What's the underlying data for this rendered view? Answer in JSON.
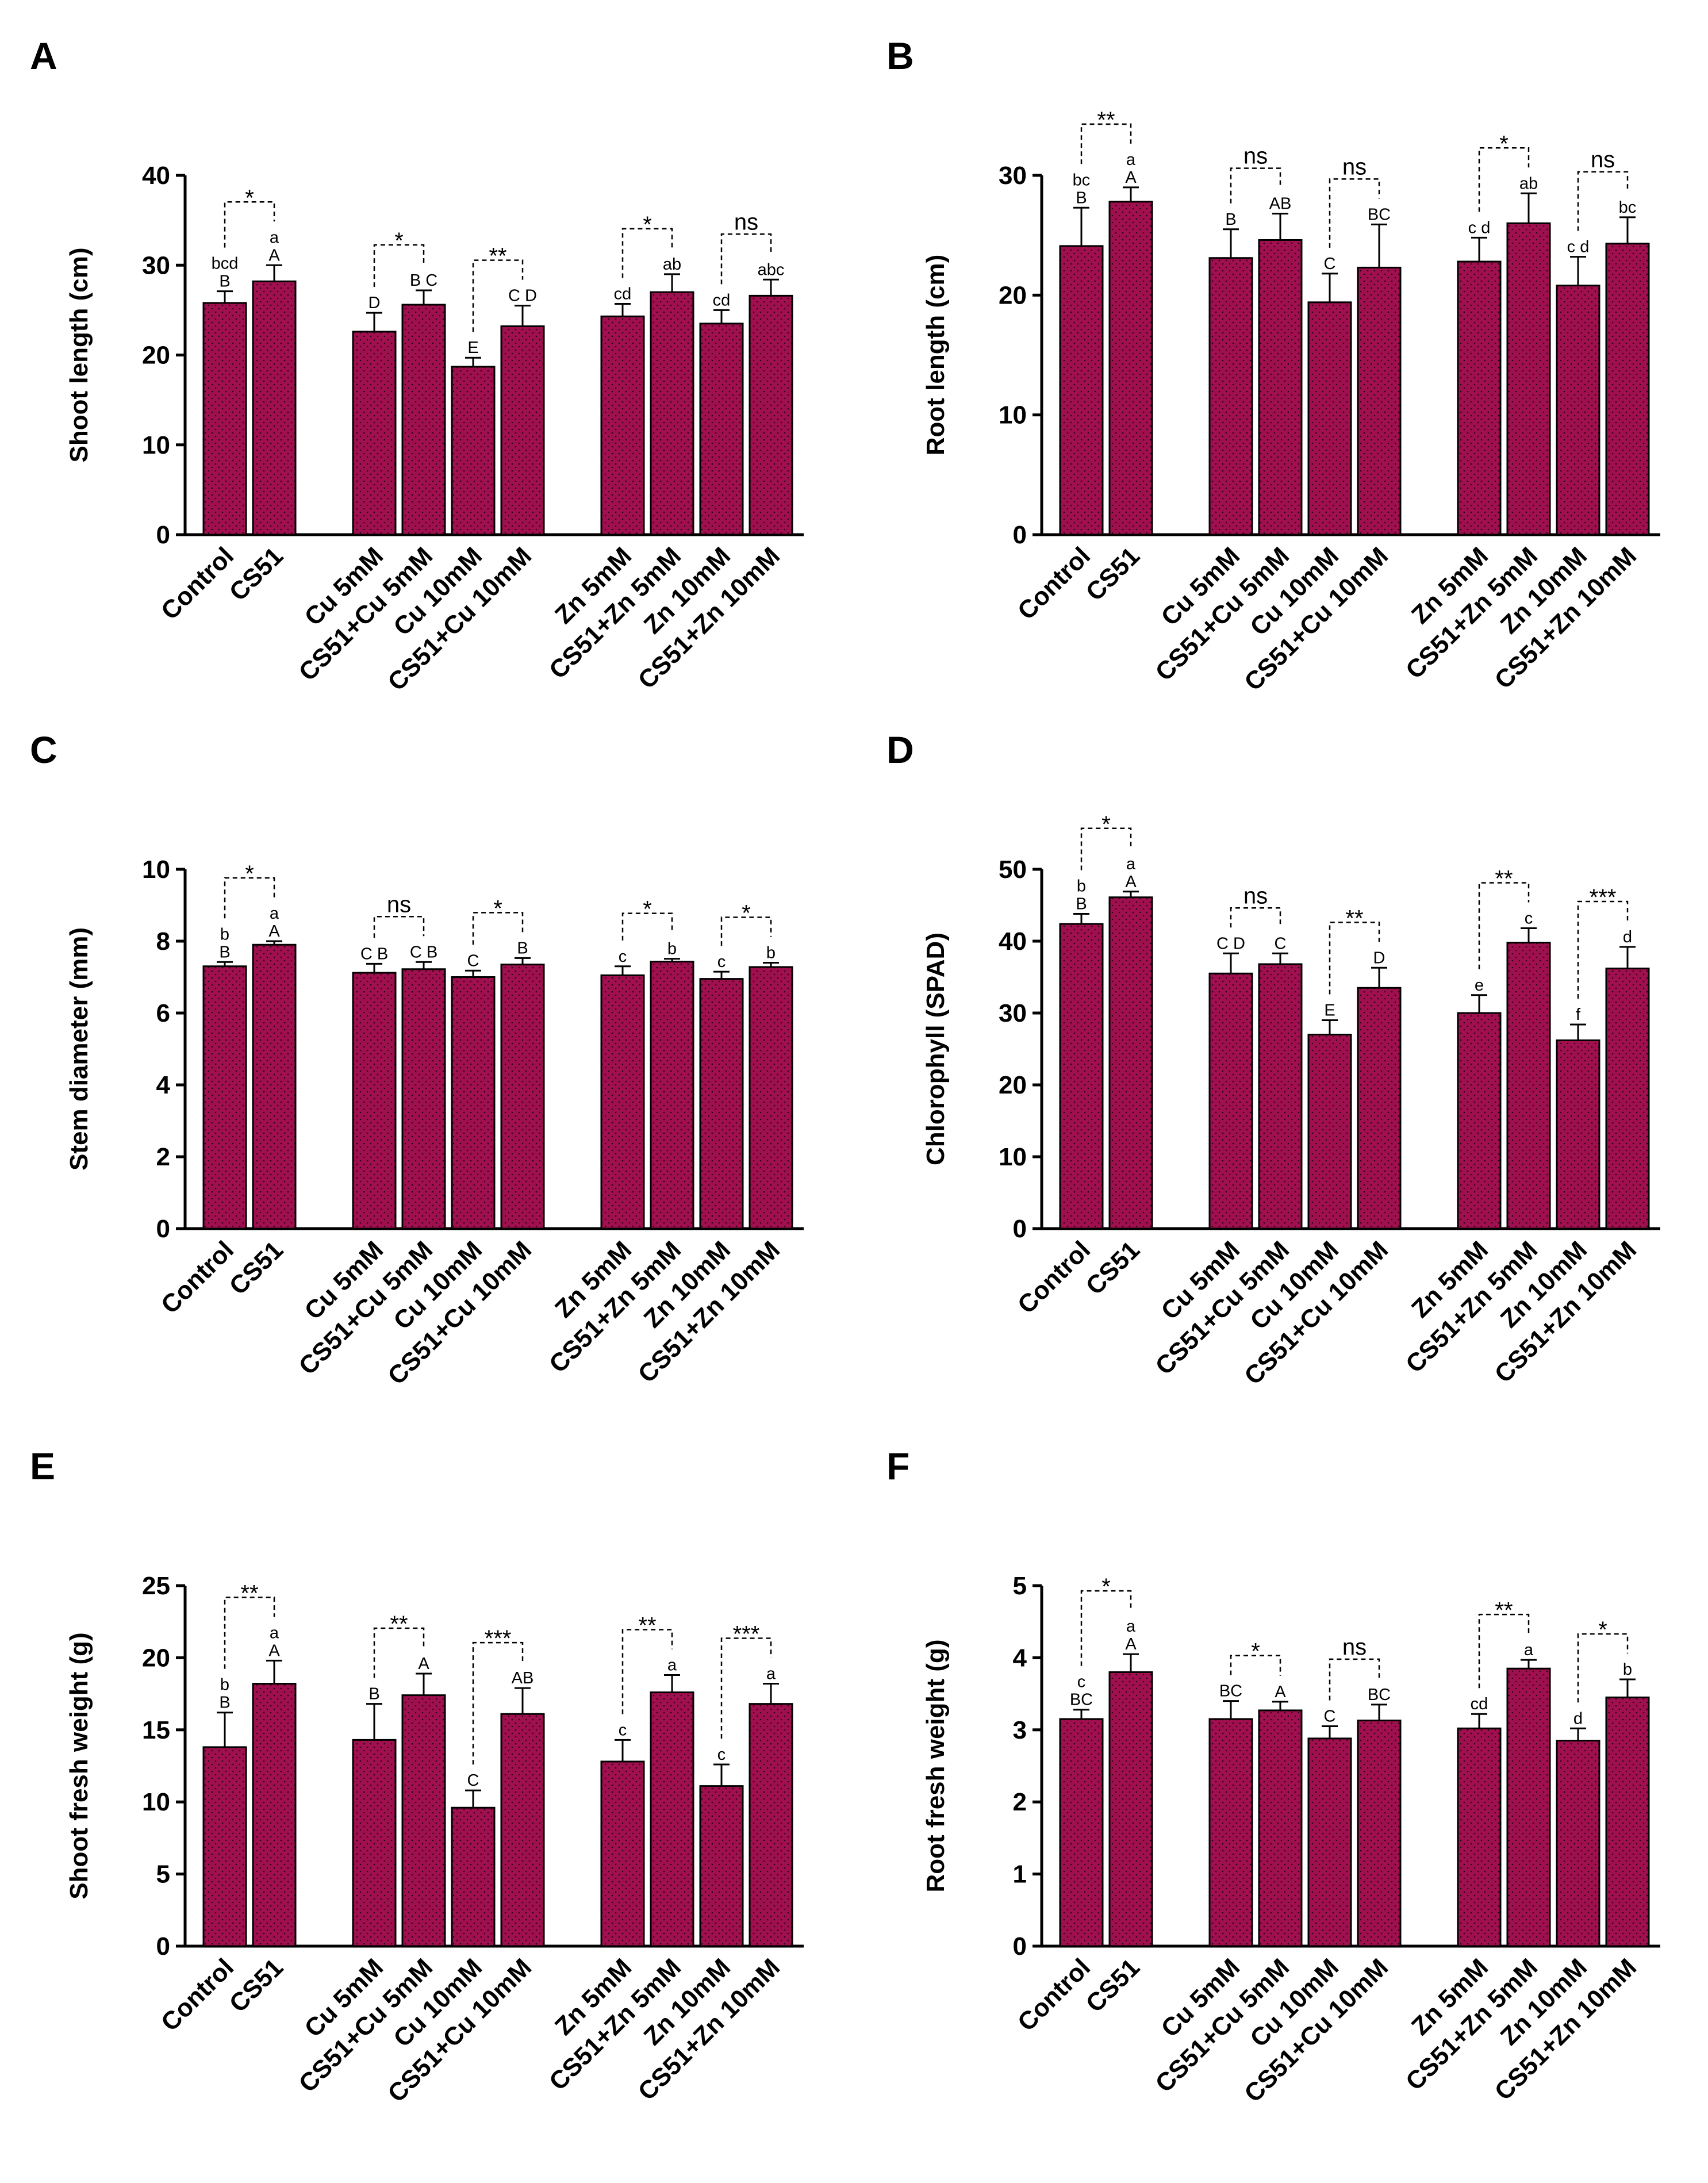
{
  "figure": {
    "bar_color": "#a0104f",
    "categories": [
      "Control",
      "CS51",
      "Cu 5mM",
      "CS51+Cu 5mM",
      "Cu 10mM",
      "CS51+Cu 10mM",
      "Zn 5mM",
      "CS51+Zn 5mM",
      "Zn 10mM",
      "CS51+Zn 10mM"
    ]
  },
  "chart_data": [
    {
      "panel": "A",
      "type": "bar",
      "ylabel": "Shoot length (cm)",
      "ylim": [
        0,
        40
      ],
      "yticks": [
        "0",
        "10",
        "20",
        "30",
        "40"
      ],
      "values": [
        25.8,
        28.2,
        22.6,
        25.6,
        18.7,
        23.2,
        24.3,
        27.0,
        23.5,
        26.6
      ],
      "errors": [
        1.3,
        1.8,
        2.1,
        1.6,
        1.0,
        2.3,
        1.4,
        2.0,
        1.5,
        1.8
      ],
      "lower_letters": [
        "bcd",
        "a",
        "",
        "",
        "",
        "",
        "cd",
        "ab",
        "cd",
        "abc"
      ],
      "upper_letters": [
        "B",
        "A",
        "D",
        "B C",
        "E",
        "C D",
        "",
        "",
        "",
        ""
      ],
      "comparisons": [
        {
          "pair": [
            0,
            1
          ],
          "label": "*"
        },
        {
          "pair": [
            2,
            3
          ],
          "label": "*"
        },
        {
          "pair": [
            4,
            5
          ],
          "label": "**"
        },
        {
          "pair": [
            6,
            7
          ],
          "label": "*"
        },
        {
          "pair": [
            8,
            9
          ],
          "label": "ns"
        }
      ]
    },
    {
      "panel": "B",
      "type": "bar",
      "ylabel": "Root length (cm)",
      "ylim": [
        0,
        30
      ],
      "yticks": [
        "0",
        "10",
        "20",
        "30"
      ],
      "values": [
        24.1,
        27.8,
        23.1,
        24.6,
        19.4,
        22.3,
        22.8,
        26.0,
        20.8,
        24.3
      ],
      "errors": [
        3.2,
        1.2,
        2.4,
        2.2,
        2.4,
        3.6,
        2.0,
        2.5,
        2.4,
        2.2
      ],
      "lower_letters": [
        "bc",
        "a",
        "",
        "",
        "",
        "",
        "c d",
        "ab",
        "c d",
        "bc"
      ],
      "upper_letters": [
        "B",
        "A",
        "B",
        "AB",
        "C",
        "BC",
        "",
        "",
        "",
        ""
      ],
      "comparisons": [
        {
          "pair": [
            0,
            1
          ],
          "label": "**"
        },
        {
          "pair": [
            2,
            3
          ],
          "label": "ns"
        },
        {
          "pair": [
            4,
            5
          ],
          "label": "ns"
        },
        {
          "pair": [
            6,
            7
          ],
          "label": "*"
        },
        {
          "pair": [
            8,
            9
          ],
          "label": "ns"
        }
      ]
    },
    {
      "panel": "C",
      "type": "bar",
      "ylabel": "Stem diameter (mm)",
      "ylim": [
        0,
        10
      ],
      "yticks": [
        "0",
        "2",
        "4",
        "6",
        "8",
        "10"
      ],
      "values": [
        7.3,
        7.9,
        7.12,
        7.22,
        7.0,
        7.35,
        7.05,
        7.43,
        6.95,
        7.28
      ],
      "errors": [
        0.12,
        0.1,
        0.25,
        0.2,
        0.18,
        0.18,
        0.25,
        0.08,
        0.2,
        0.12
      ],
      "lower_letters": [
        "b",
        "a",
        "",
        "",
        "",
        "",
        "c",
        "b",
        "c",
        "b"
      ],
      "upper_letters": [
        "B",
        "A",
        "C B",
        "C B",
        "C",
        "B",
        "",
        "",
        "",
        ""
      ],
      "comparisons": [
        {
          "pair": [
            0,
            1
          ],
          "label": "*"
        },
        {
          "pair": [
            2,
            3
          ],
          "label": "ns"
        },
        {
          "pair": [
            4,
            5
          ],
          "label": "*"
        },
        {
          "pair": [
            6,
            7
          ],
          "label": "*"
        },
        {
          "pair": [
            8,
            9
          ],
          "label": "*"
        }
      ]
    },
    {
      "panel": "D",
      "type": "bar",
      "ylabel": "Chlorophyll (SPAD)",
      "ylim": [
        0,
        50
      ],
      "yticks": [
        "0",
        "10",
        "20",
        "30",
        "40",
        "50"
      ],
      "values": [
        42.4,
        46.1,
        35.5,
        36.8,
        27.0,
        33.5,
        30.0,
        39.8,
        26.2,
        36.2
      ],
      "errors": [
        1.4,
        0.8,
        2.8,
        1.5,
        2.0,
        2.8,
        2.5,
        2.0,
        2.2,
        3.0
      ],
      "lower_letters": [
        "b",
        "a",
        "",
        "",
        "",
        "",
        "e",
        "c",
        "f",
        "d"
      ],
      "upper_letters": [
        "B",
        "A",
        "C D",
        "C",
        "E",
        "D",
        "",
        "",
        "",
        ""
      ],
      "comparisons": [
        {
          "pair": [
            0,
            1
          ],
          "label": "*"
        },
        {
          "pair": [
            2,
            3
          ],
          "label": "ns"
        },
        {
          "pair": [
            4,
            5
          ],
          "label": "**"
        },
        {
          "pair": [
            6,
            7
          ],
          "label": "**"
        },
        {
          "pair": [
            8,
            9
          ],
          "label": "***"
        }
      ]
    },
    {
      "panel": "E",
      "type": "bar",
      "ylabel": "Shoot fresh weight (g)",
      "ylim": [
        0,
        25
      ],
      "yticks": [
        "0",
        "5",
        "10",
        "15",
        "20",
        "25"
      ],
      "values": [
        13.8,
        18.2,
        14.3,
        17.4,
        9.6,
        16.1,
        12.8,
        17.6,
        11.1,
        16.8
      ],
      "errors": [
        2.4,
        1.6,
        2.5,
        1.5,
        1.2,
        1.8,
        1.5,
        1.2,
        1.5,
        1.4
      ],
      "lower_letters": [
        "b",
        "a",
        "",
        "",
        "",
        "",
        "c",
        "a",
        "c",
        "a"
      ],
      "upper_letters": [
        "B",
        "A",
        "B",
        "A",
        "C",
        "AB",
        "",
        "",
        "",
        ""
      ],
      "comparisons": [
        {
          "pair": [
            0,
            1
          ],
          "label": "**"
        },
        {
          "pair": [
            2,
            3
          ],
          "label": "**"
        },
        {
          "pair": [
            4,
            5
          ],
          "label": "***"
        },
        {
          "pair": [
            6,
            7
          ],
          "label": "**"
        },
        {
          "pair": [
            8,
            9
          ],
          "label": "***"
        }
      ]
    },
    {
      "panel": "F",
      "type": "bar",
      "ylabel": "Root fresh weight (g)",
      "ylim": [
        0,
        5
      ],
      "yticks": [
        "0",
        "1",
        "2",
        "3",
        "4",
        "5"
      ],
      "values": [
        3.15,
        3.8,
        3.15,
        3.27,
        2.88,
        3.13,
        3.02,
        3.85,
        2.85,
        3.45
      ],
      "errors": [
        0.13,
        0.25,
        0.25,
        0.12,
        0.17,
        0.22,
        0.2,
        0.12,
        0.17,
        0.25
      ],
      "lower_letters": [
        "c",
        "a",
        "",
        "",
        "",
        "",
        "cd",
        "a",
        "d",
        "b"
      ],
      "upper_letters": [
        "BC",
        "A",
        "BC",
        "A",
        "C",
        "BC",
        "",
        "",
        "",
        ""
      ],
      "comparisons": [
        {
          "pair": [
            0,
            1
          ],
          "label": "*"
        },
        {
          "pair": [
            2,
            3
          ],
          "label": "*"
        },
        {
          "pair": [
            4,
            5
          ],
          "label": "ns"
        },
        {
          "pair": [
            6,
            7
          ],
          "label": "**"
        },
        {
          "pair": [
            8,
            9
          ],
          "label": "*"
        }
      ]
    }
  ]
}
